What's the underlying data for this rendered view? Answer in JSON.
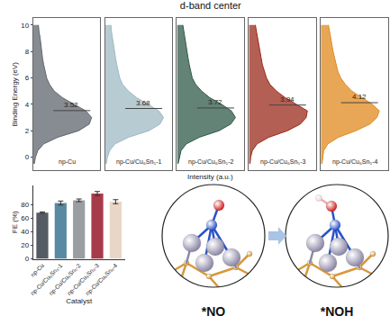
{
  "chart_data": [
    {
      "type": "area",
      "title": "d-band center",
      "xlabel": "Intensity (a.u.)",
      "ylabel": "Binding Energy (eV)",
      "y": [
        -0.5,
        0,
        0.5,
        1,
        1.5,
        2,
        2.5,
        3,
        3.5,
        4,
        4.5,
        5,
        5.5,
        6,
        6.5,
        7,
        7.5,
        8,
        8.5,
        9,
        9.5,
        10
      ],
      "xlim": [
        0,
        1.15
      ],
      "ylim": [
        -1,
        10.5
      ],
      "yticks": [
        0,
        2,
        4,
        6,
        8,
        10
      ],
      "tick_labels": "y",
      "series": [
        {
          "name": "np-Cu",
          "color": "#5f666e",
          "d_band_center": 3.52,
          "values": [
            0.02,
            0.04,
            0.08,
            0.18,
            0.42,
            0.78,
            0.96,
            1.0,
            0.9,
            0.7,
            0.5,
            0.36,
            0.28,
            0.23,
            0.2,
            0.18,
            0.16,
            0.15,
            0.13,
            0.12,
            0.1,
            0.09
          ]
        },
        {
          "name": "np-Cu/Cu₆Sn₅-1",
          "color": "#9fb9c4",
          "d_band_center": 3.68,
          "values": [
            0.02,
            0.04,
            0.08,
            0.17,
            0.4,
            0.75,
            0.94,
            1.0,
            0.92,
            0.74,
            0.54,
            0.4,
            0.3,
            0.25,
            0.22,
            0.2,
            0.18,
            0.16,
            0.14,
            0.13,
            0.11,
            0.1
          ]
        },
        {
          "name": "np-Cu/Cu₆Sn₅-2",
          "color": "#2f5a4a",
          "d_band_center": 3.72,
          "values": [
            0.02,
            0.04,
            0.07,
            0.16,
            0.38,
            0.72,
            0.92,
            1.0,
            0.93,
            0.76,
            0.56,
            0.42,
            0.32,
            0.26,
            0.23,
            0.21,
            0.19,
            0.17,
            0.15,
            0.13,
            0.12,
            0.1
          ]
        },
        {
          "name": "np-Cu/Cu₆Sn₅-3",
          "color": "#9b2a1a",
          "d_band_center": 3.94,
          "values": [
            0.02,
            0.03,
            0.06,
            0.14,
            0.34,
            0.66,
            0.88,
            0.98,
            1.0,
            0.82,
            0.62,
            0.47,
            0.36,
            0.3,
            0.26,
            0.23,
            0.21,
            0.19,
            0.17,
            0.15,
            0.13,
            0.11
          ]
        },
        {
          "name": "np-Cu/Cu₆Sn₅-4",
          "color": "#e08a1e",
          "d_band_center": 4.12,
          "values": [
            0.02,
            0.03,
            0.05,
            0.12,
            0.3,
            0.6,
            0.84,
            0.96,
            1.0,
            0.88,
            0.7,
            0.53,
            0.42,
            0.34,
            0.29,
            0.26,
            0.23,
            0.21,
            0.19,
            0.17,
            0.15,
            0.13
          ]
        }
      ]
    },
    {
      "type": "bar",
      "xlabel": "Catalyst",
      "ylabel": "FE (%)",
      "categories": [
        "np-Cu",
        "np-Cu/Cu₆Sn₅-1",
        "np-Cu/Cu₆Sn₅-2",
        "np-Cu/Cu₆Sn₅-3",
        "np-Cu/Cu₆Sn₅-4"
      ],
      "values": [
        68,
        82,
        86,
        96,
        84
      ],
      "errors": [
        1,
        3,
        2,
        3,
        3
      ],
      "colors": [
        "#545b63",
        "#5a8aa3",
        "#9a9ea3",
        "#a63c4a",
        "#e8d6c6"
      ],
      "ylim": [
        0,
        108
      ],
      "yticks": [
        0,
        20,
        40,
        60,
        80
      ]
    }
  ],
  "diagram": {
    "panels": [
      {
        "label": "*NO"
      },
      {
        "label": "*NOH"
      }
    ]
  }
}
